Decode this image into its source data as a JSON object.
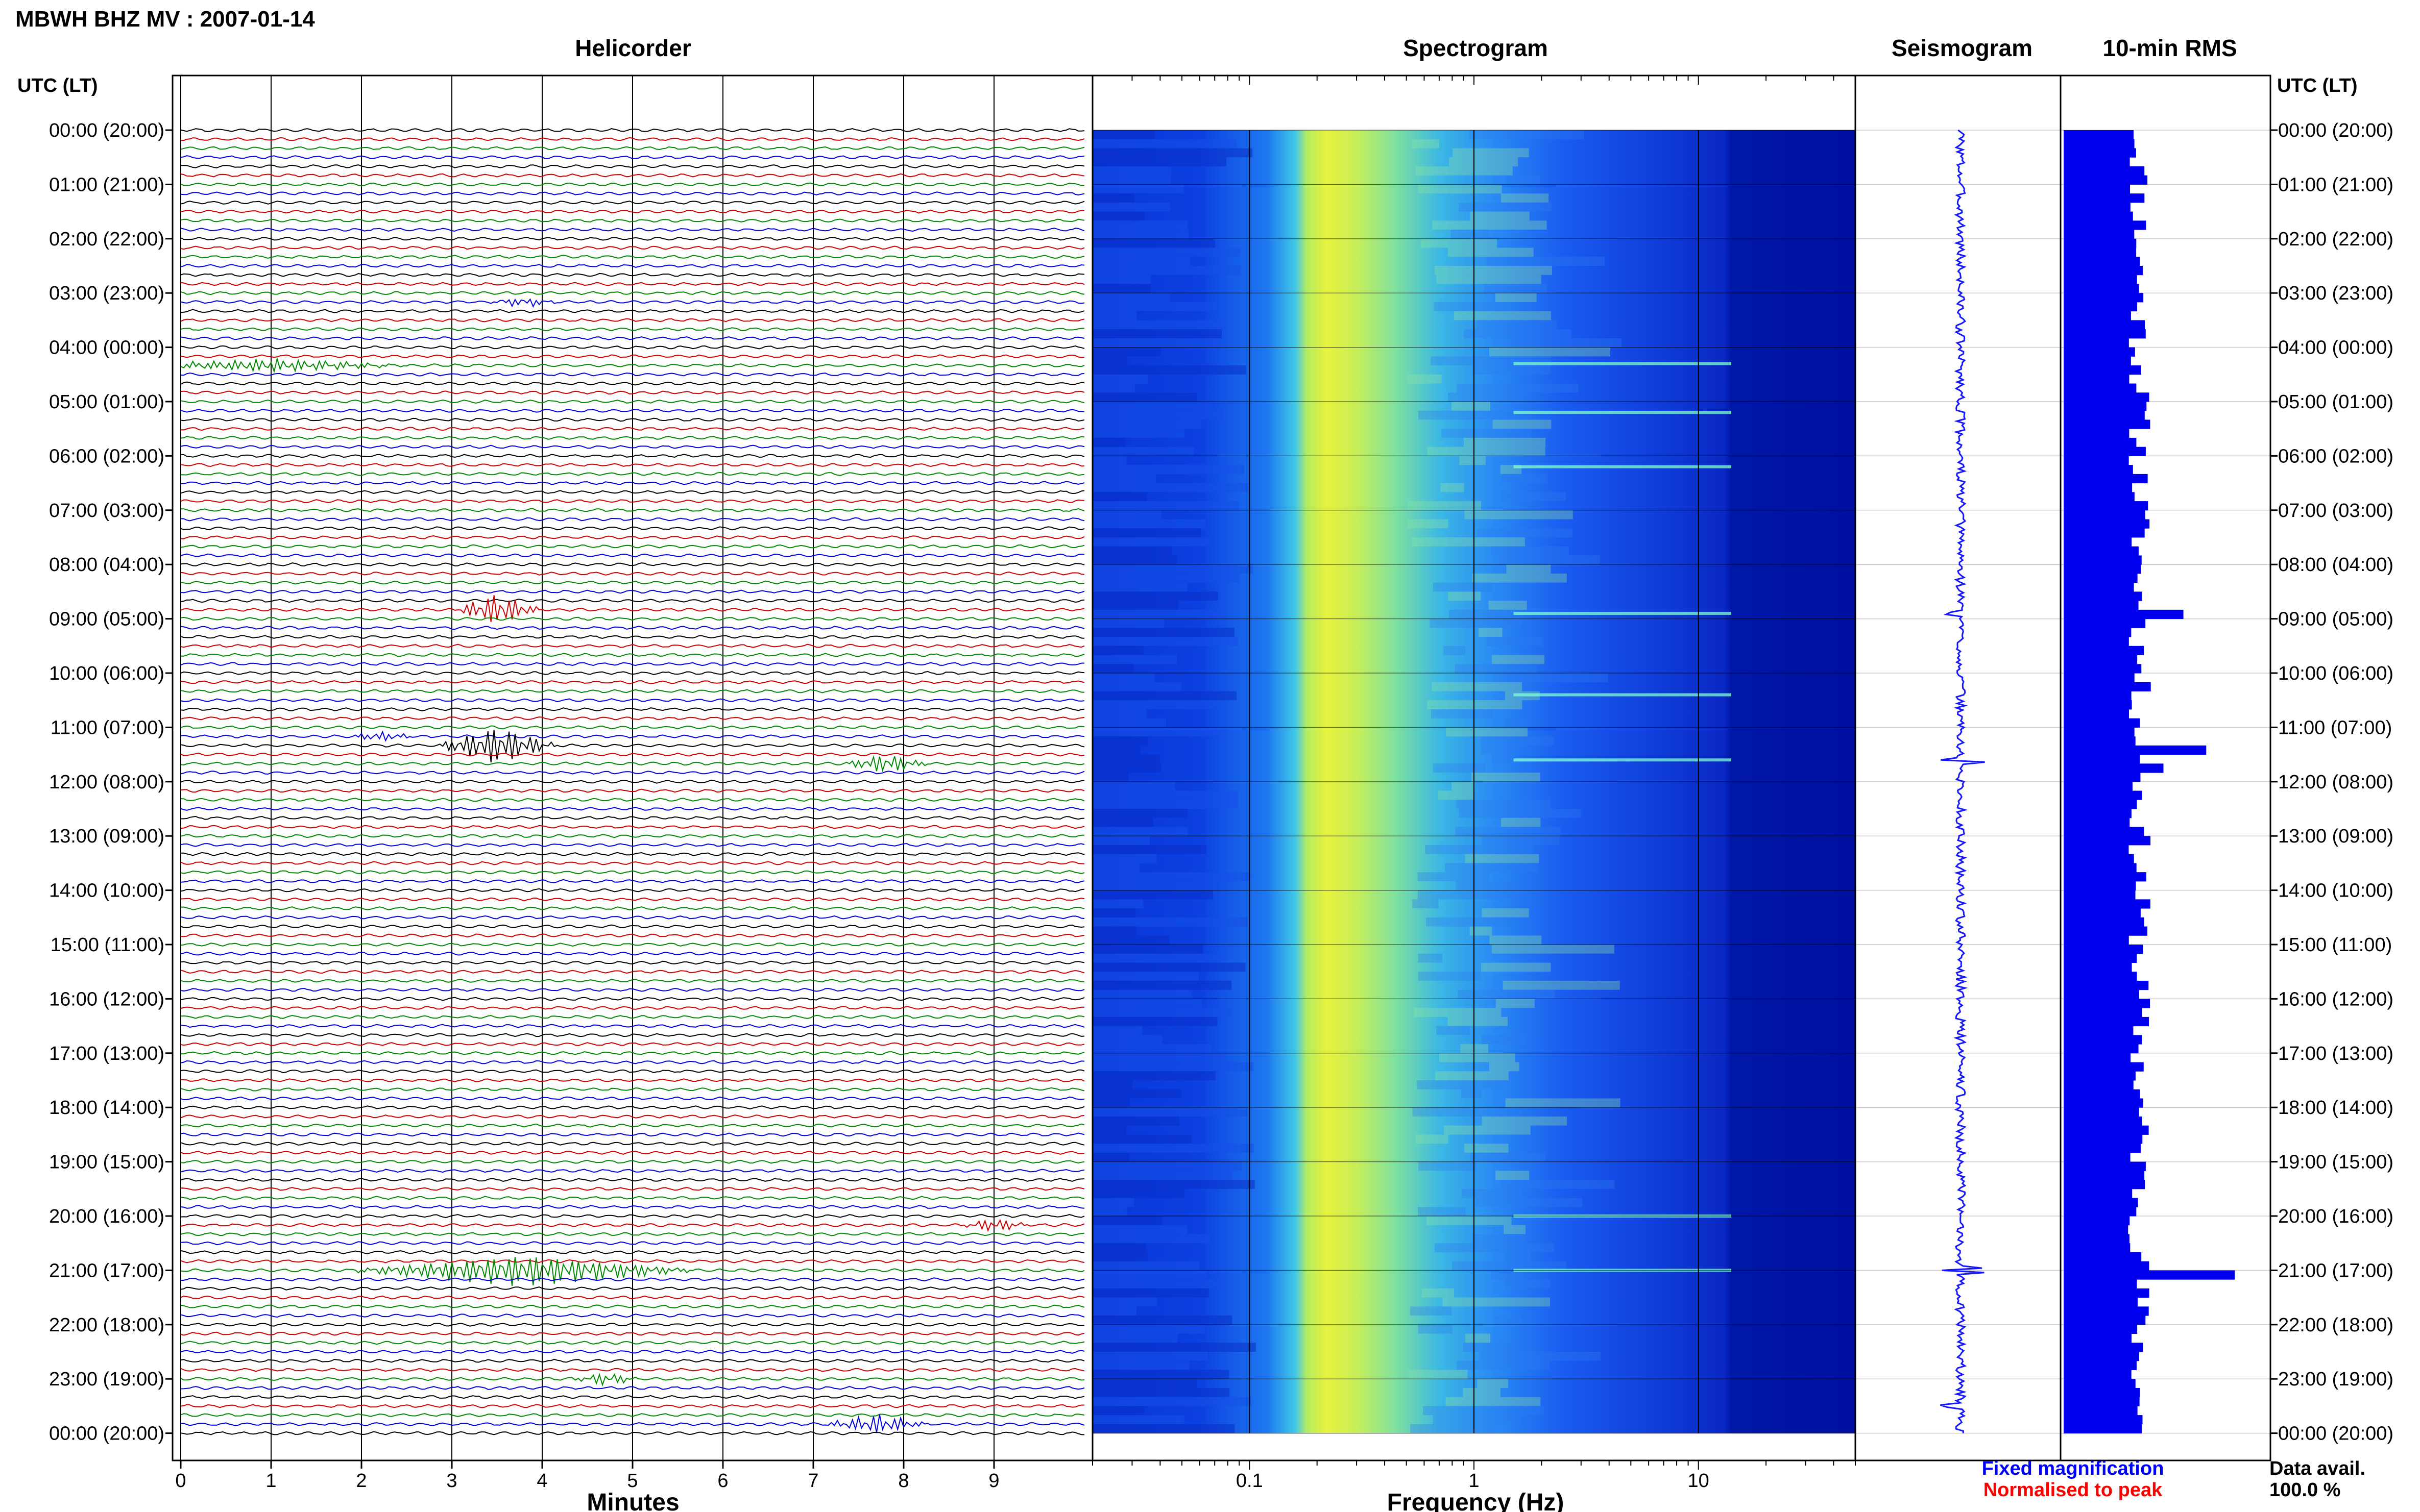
{
  "header": {
    "title": "MBWH BHZ MV : 2007-01-14",
    "axis_label_left": "UTC (LT)",
    "axis_label_right": "UTC (LT)"
  },
  "panels": {
    "helicorder": "Helicorder",
    "spectrogram": "Spectrogram",
    "seismogram": "Seismogram",
    "rms": "10-min RMS"
  },
  "footer": {
    "xlabel_minutes": "Minutes",
    "xlabel_frequency": "Frequency (Hz)",
    "legend_fixed": "Fixed magnification",
    "legend_normalised": "Normalised to peak",
    "data_avail_label": "Data avail.",
    "data_avail_value": "100.0 %"
  },
  "colors": {
    "trace_cycle": [
      "#000000",
      "#cc0000",
      "#008800",
      "#0000dd"
    ],
    "seismogram": "#1515ff",
    "rms": "#0000ee",
    "legend_fixed": "#0000ff",
    "legend_normalised": "#ff0000",
    "spectrogram_colormap": [
      "#00008f",
      "#0000ff",
      "#00ffff",
      "#ffff00",
      "#ff0000"
    ]
  },
  "chart_data": {
    "type": "heatmap",
    "title": "MBWH BHZ MV : 2007-01-14",
    "time_labels": [
      "00:00 (20:00)",
      "01:00 (21:00)",
      "02:00 (22:00)",
      "03:00 (23:00)",
      "04:00 (00:00)",
      "05:00 (01:00)",
      "06:00 (02:00)",
      "07:00 (03:00)",
      "08:00 (04:00)",
      "09:00 (05:00)",
      "10:00 (06:00)",
      "11:00 (07:00)",
      "12:00 (08:00)",
      "13:00 (09:00)",
      "14:00 (10:00)",
      "15:00 (11:00)",
      "16:00 (12:00)",
      "17:00 (13:00)",
      "18:00 (14:00)",
      "19:00 (15:00)",
      "20:00 (16:00)",
      "21:00 (17:00)",
      "22:00 (18:00)",
      "23:00 (19:00)",
      "00:00 (20:00)"
    ],
    "helicorder": {
      "xlabel": "Minutes",
      "x_ticks": [
        "0",
        "1",
        "2",
        "3",
        "4",
        "5",
        "6",
        "7",
        "8",
        "9"
      ],
      "xlim": [
        0,
        10
      ],
      "lines_per_hour": 6,
      "events": [
        {
          "hour": 8.9,
          "minute": 3.5,
          "amp": 5,
          "dur": 0.5,
          "color_index": 1
        },
        {
          "hour": 11.4,
          "minute": 3.5,
          "amp": 6,
          "dur": 0.7,
          "color_index": 3
        },
        {
          "hour": 11.6,
          "minute": 7.8,
          "amp": 3,
          "dur": 0.5,
          "color_index": 1
        },
        {
          "hour": 21.0,
          "minute": 3.8,
          "amp": 5,
          "dur": 2.0,
          "color_index": 3
        },
        {
          "hour": 23.8,
          "minute": 7.7,
          "amp": 3,
          "dur": 0.6,
          "color_index": 0
        },
        {
          "hour": 23.0,
          "minute": 4.7,
          "amp": 2,
          "dur": 0.4,
          "color_index": 1
        },
        {
          "hour": 20.2,
          "minute": 9.0,
          "amp": 2,
          "dur": 0.4,
          "color_index": 1
        },
        {
          "hour": 4.3,
          "minute": 1.0,
          "amp": 2,
          "dur": 1.6,
          "color_index": 3
        },
        {
          "hour": 3.15,
          "minute": 3.8,
          "amp": 1.5,
          "dur": 0.4,
          "color_index": 2
        },
        {
          "hour": 11.1,
          "minute": 2.2,
          "amp": 1.5,
          "dur": 0.4,
          "color_index": 2
        }
      ]
    },
    "spectrogram": {
      "xlabel": "Frequency (Hz)",
      "x_scale": "log",
      "xlim": [
        0.02,
        50
      ],
      "x_ticks": [
        "0.1",
        "1",
        "10"
      ],
      "colormap": "jet",
      "peak_band_hz": [
        0.18,
        0.5
      ],
      "event_hours": [
        8.9,
        11.6,
        20.0,
        21.0,
        4.3,
        5.2,
        6.2,
        10.4
      ]
    },
    "seismogram": {
      "event_hours": [
        8.9,
        11.4,
        11.6,
        21.0,
        23.5
      ]
    },
    "rms": {
      "bin_minutes": 10,
      "peaks": [
        {
          "hour": 8.9,
          "value": 4.2
        },
        {
          "hour": 11.4,
          "value": 5.0
        },
        {
          "hour": 11.6,
          "value": 3.5
        },
        {
          "hour": 21.0,
          "value": 6.0
        }
      ],
      "baseline": 2.5
    },
    "data_availability_percent": 100.0
  }
}
